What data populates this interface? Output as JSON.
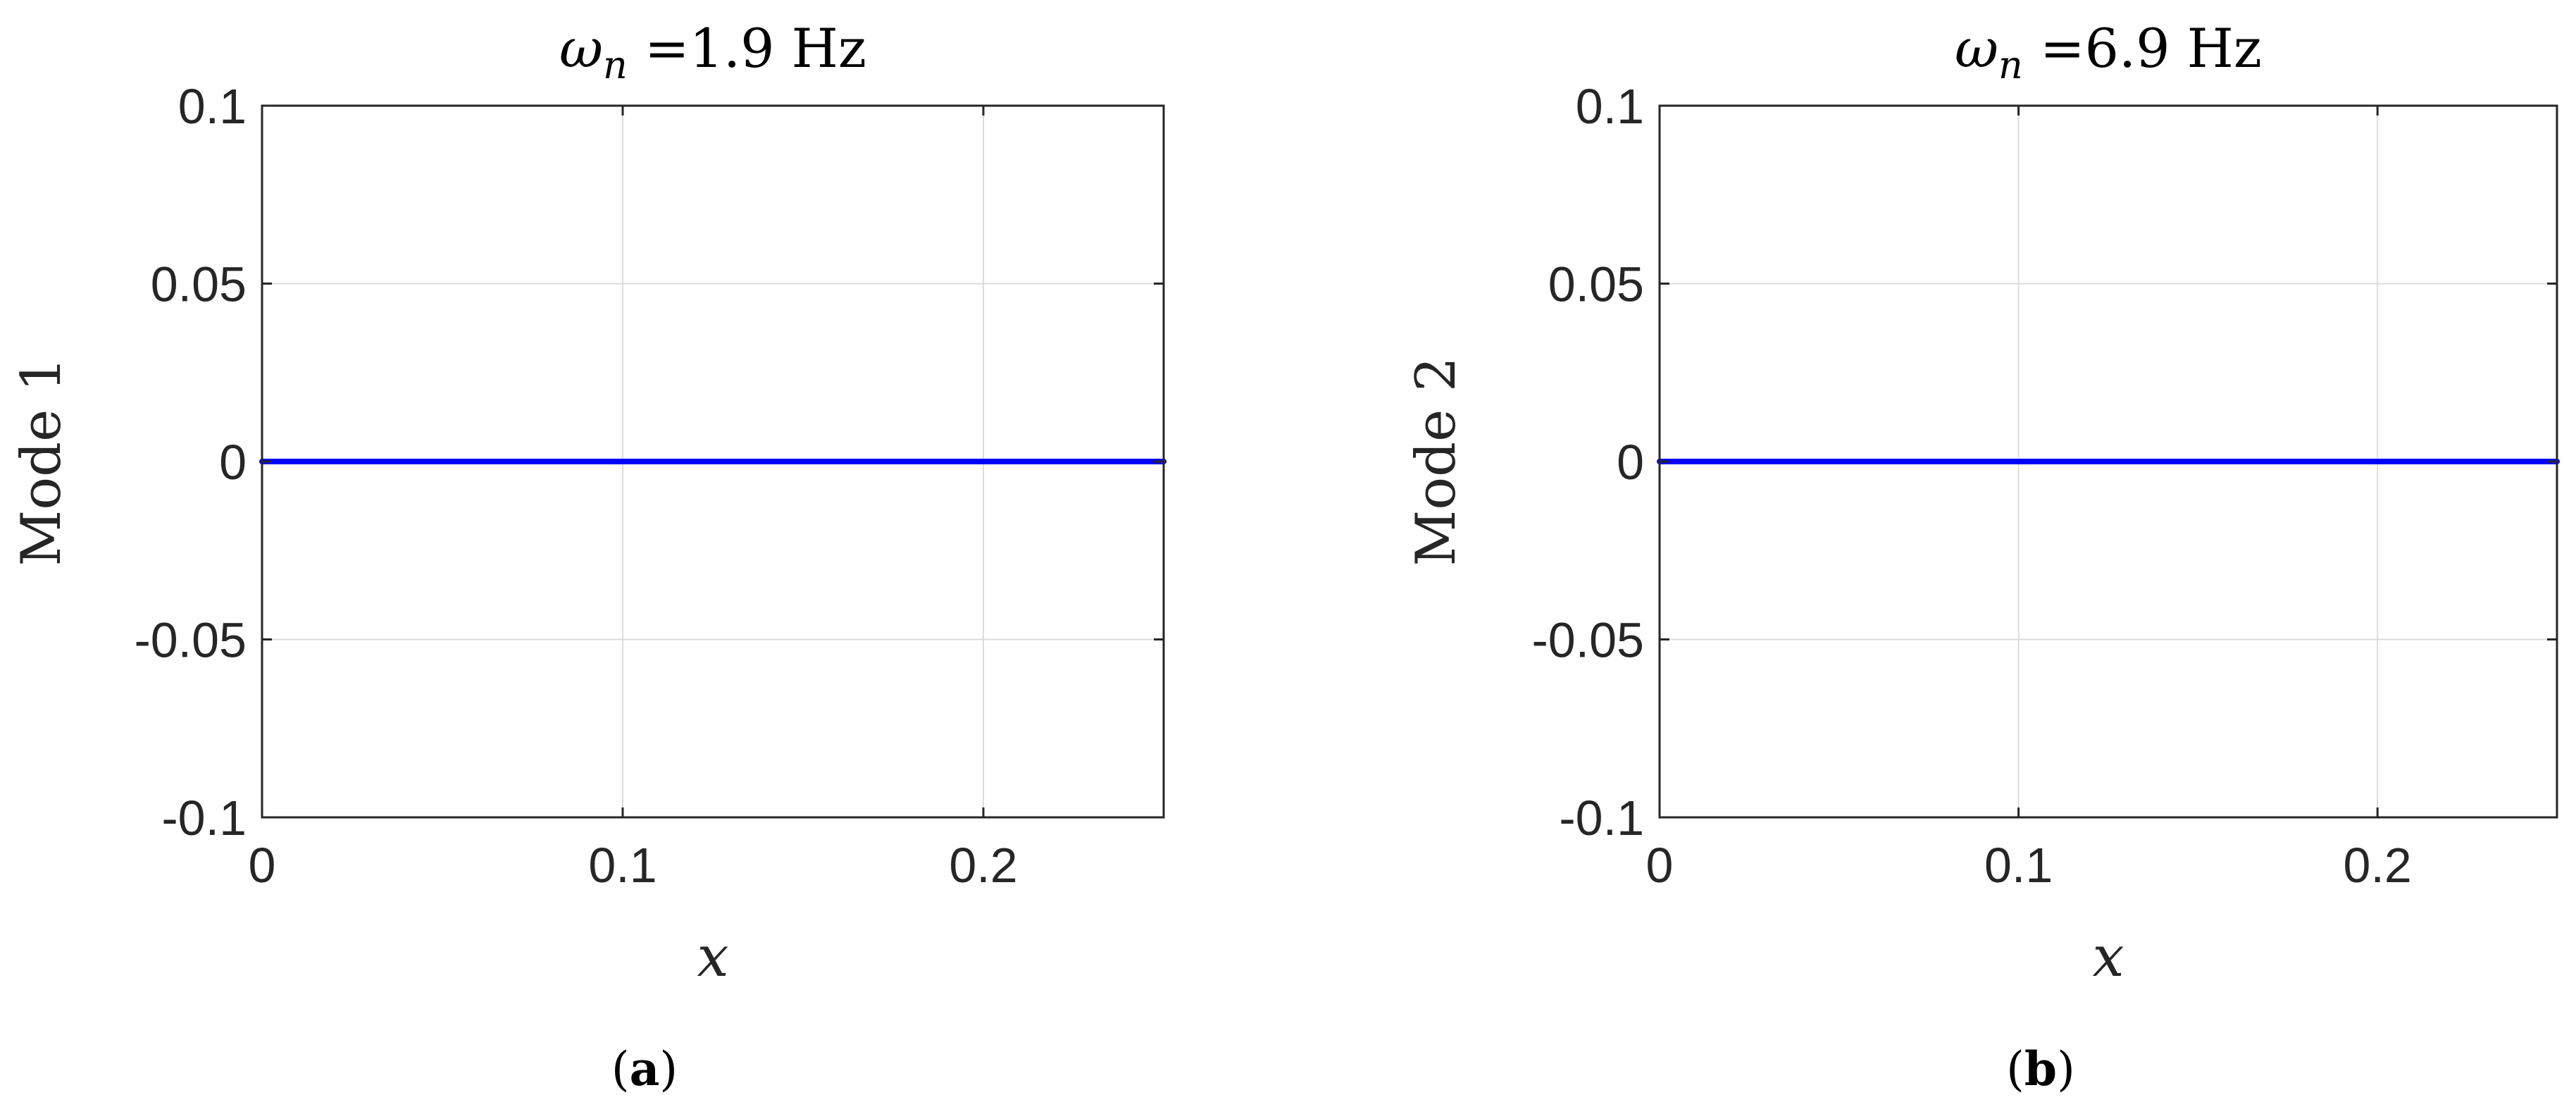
{
  "chart_data": [
    {
      "type": "line",
      "title": "ωn =1.9 Hz",
      "title_symbol": "ω",
      "title_subscript": "n",
      "title_rest": " =1.9 Hz",
      "xlabel": "x",
      "ylabel": "Mode 1",
      "caption": {
        "open": "(",
        "letter": "a",
        "close": ")"
      },
      "xlim": [
        0,
        0.25
      ],
      "ylim": [
        -0.1,
        0.1
      ],
      "xticks": [
        0,
        0.1,
        0.2
      ],
      "xtick_labels": [
        "0",
        "0.1",
        "0.2"
      ],
      "yticks": [
        0.1,
        0.05,
        0,
        -0.05,
        -0.1
      ],
      "ytick_labels": [
        "0.1",
        "0.05",
        "0",
        "-0.05",
        "-0.1"
      ],
      "grid": true,
      "series": [
        {
          "x": [
            0,
            0.25
          ],
          "y": [
            0,
            0
          ],
          "color": "#0000ff"
        }
      ]
    },
    {
      "type": "line",
      "title": "ωn =6.9 Hz",
      "title_symbol": "ω",
      "title_subscript": "n",
      "title_rest": " =6.9 Hz",
      "xlabel": "x",
      "ylabel": "Mode 2",
      "caption": {
        "open": "(",
        "letter": "b",
        "close": ")"
      },
      "xlim": [
        0,
        0.25
      ],
      "ylim": [
        -0.1,
        0.1
      ],
      "xticks": [
        0,
        0.1,
        0.2
      ],
      "xtick_labels": [
        "0",
        "0.1",
        "0.2"
      ],
      "yticks": [
        0.1,
        0.05,
        0,
        -0.05,
        -0.1
      ],
      "ytick_labels": [
        "0.1",
        "0.05",
        "0",
        "-0.05",
        "-0.1"
      ],
      "grid": true,
      "series": [
        {
          "x": [
            0,
            0.25
          ],
          "y": [
            0,
            0
          ],
          "color": "#0000ff"
        }
      ]
    }
  ],
  "colors": {
    "line": "#0000ff",
    "grid": "#dcdcdc",
    "axes": "#262626",
    "text": "#262626"
  }
}
